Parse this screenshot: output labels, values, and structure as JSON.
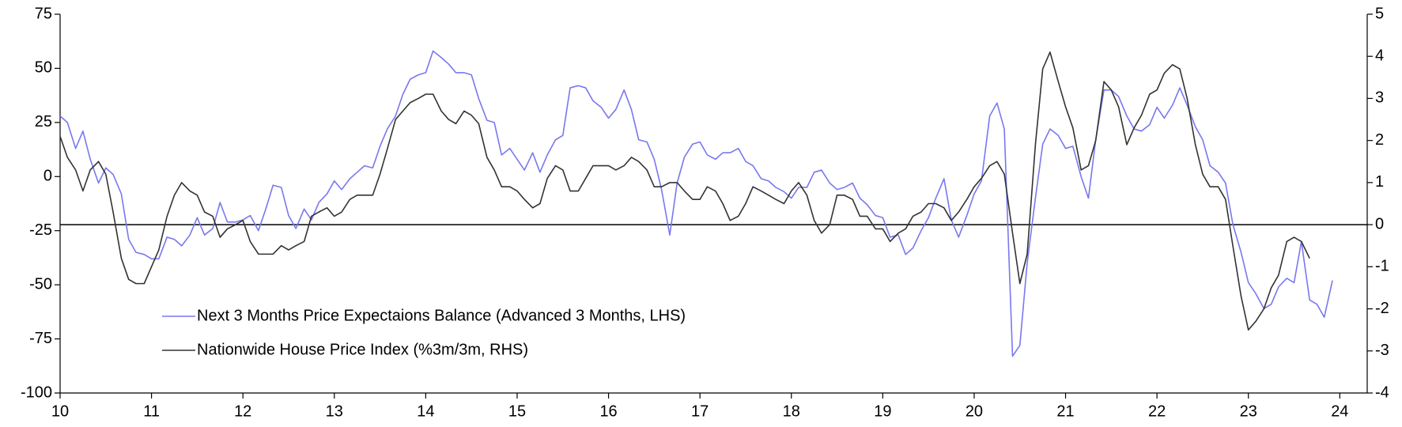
{
  "chart_data": {
    "type": "line",
    "xlim": [
      10,
      24.3
    ],
    "xticks": [
      10,
      11,
      12,
      13,
      14,
      15,
      16,
      17,
      18,
      19,
      20,
      21,
      22,
      23,
      24
    ],
    "ylim": [
      -100,
      75
    ],
    "yticks": [
      -100,
      -75,
      -50,
      -25,
      0,
      25,
      50,
      75
    ],
    "y2lim": [
      -4,
      5
    ],
    "y2ticks": [
      -4,
      -3,
      -2,
      -1,
      0,
      1,
      2,
      3,
      4,
      5
    ],
    "series": [
      {
        "name": "Next 3 Months Price Expectaions Balance (Advanced 3 Months, LHS)",
        "color": "#7878f0",
        "axis": "y",
        "x": [
          10,
          10.08,
          10.17,
          10.25,
          10.33,
          10.42,
          10.5,
          10.58,
          10.67,
          10.75,
          10.83,
          10.92,
          11,
          11.08,
          11.17,
          11.25,
          11.33,
          11.42,
          11.5,
          11.58,
          11.67,
          11.75,
          11.83,
          11.92,
          12,
          12.08,
          12.17,
          12.25,
          12.33,
          12.42,
          12.5,
          12.58,
          12.67,
          12.75,
          12.83,
          12.92,
          13,
          13.08,
          13.17,
          13.25,
          13.33,
          13.42,
          13.5,
          13.58,
          13.67,
          13.75,
          13.83,
          13.92,
          14,
          14.08,
          14.17,
          14.25,
          14.33,
          14.42,
          14.5,
          14.58,
          14.67,
          14.75,
          14.83,
          14.92,
          15,
          15.08,
          15.17,
          15.25,
          15.33,
          15.42,
          15.5,
          15.58,
          15.67,
          15.75,
          15.83,
          15.92,
          16,
          16.08,
          16.17,
          16.25,
          16.33,
          16.42,
          16.5,
          16.58,
          16.67,
          16.75,
          16.83,
          16.92,
          17,
          17.08,
          17.17,
          17.25,
          17.33,
          17.42,
          17.5,
          17.58,
          17.67,
          17.75,
          17.83,
          17.92,
          18,
          18.08,
          18.17,
          18.25,
          18.33,
          18.42,
          18.5,
          18.58,
          18.67,
          18.75,
          18.83,
          18.92,
          19,
          19.08,
          19.17,
          19.25,
          19.33,
          19.42,
          19.5,
          19.58,
          19.67,
          19.75,
          19.83,
          19.92,
          20,
          20.08,
          20.17,
          20.25,
          20.33,
          20.42,
          20.5,
          20.58,
          20.67,
          20.75,
          20.83,
          20.92,
          21,
          21.08,
          21.17,
          21.25,
          21.33,
          21.42,
          21.5,
          21.58,
          21.67,
          21.75,
          21.83,
          21.92,
          22,
          22.08,
          22.17,
          22.25,
          22.33,
          22.42,
          22.5,
          22.58,
          22.67,
          22.75,
          22.83,
          22.92,
          23,
          23.08,
          23.17,
          23.25,
          23.33,
          23.42,
          23.5,
          23.58,
          23.67,
          23.75,
          23.83,
          23.92
        ],
        "values": [
          28,
          25,
          13,
          21,
          8,
          -3,
          4,
          1,
          -8,
          -29,
          -35,
          -36,
          -38,
          -38,
          -28,
          -29,
          -32,
          -27,
          -19,
          -27,
          -24,
          -12,
          -21,
          -21,
          -20,
          -18,
          -25,
          -15,
          -4,
          -5,
          -18,
          -24,
          -15,
          -20,
          -12,
          -8,
          -2,
          -6,
          -1,
          2,
          5,
          4,
          14,
          22,
          28,
          38,
          45,
          47,
          48,
          58,
          55,
          52,
          48,
          48,
          47,
          36,
          26,
          25,
          10,
          13,
          8,
          3,
          11,
          2,
          10,
          17,
          19,
          41,
          42,
          41,
          35,
          32,
          27,
          31,
          40,
          31,
          17,
          16,
          8,
          -6,
          -27,
          -3,
          9,
          15,
          16,
          10,
          8,
          11,
          11,
          13,
          7,
          5,
          -1,
          -2,
          -5,
          -7,
          -10,
          -5,
          -5,
          2,
          3,
          -3,
          -6,
          -5,
          -3,
          -10,
          -13,
          -18,
          -19,
          -28,
          -27,
          -36,
          -33,
          -25,
          -19,
          -10,
          -1,
          -20,
          -28,
          -18,
          -8,
          -2,
          28,
          34,
          22,
          -83,
          -78,
          -40,
          -10,
          15,
          22,
          19,
          13,
          14,
          0,
          -10,
          17,
          40,
          40,
          37,
          28,
          22,
          21,
          24,
          32,
          27,
          33,
          41,
          33,
          23,
          17,
          5,
          2,
          -3,
          -22,
          -35,
          -49,
          -54,
          -61,
          -59,
          -51,
          -47,
          -49,
          -30,
          -57,
          -59,
          -65,
          -48
        ]
      },
      {
        "name": "Nationwide House Price Index (%3m/3m, RHS)",
        "color": "#333333",
        "axis": "y2",
        "x": [
          10,
          10.08,
          10.17,
          10.25,
          10.33,
          10.42,
          10.5,
          10.58,
          10.67,
          10.75,
          10.83,
          10.92,
          11,
          11.08,
          11.17,
          11.25,
          11.33,
          11.42,
          11.5,
          11.58,
          11.67,
          11.75,
          11.83,
          11.92,
          12,
          12.08,
          12.17,
          12.25,
          12.33,
          12.42,
          12.5,
          12.58,
          12.67,
          12.75,
          12.83,
          12.92,
          13,
          13.08,
          13.17,
          13.25,
          13.33,
          13.42,
          13.5,
          13.58,
          13.67,
          13.75,
          13.83,
          13.92,
          14,
          14.08,
          14.17,
          14.25,
          14.33,
          14.42,
          14.5,
          14.58,
          14.67,
          14.75,
          14.83,
          14.92,
          15,
          15.08,
          15.17,
          15.25,
          15.33,
          15.42,
          15.5,
          15.58,
          15.67,
          15.75,
          15.83,
          15.92,
          16,
          16.08,
          16.17,
          16.25,
          16.33,
          16.42,
          16.5,
          16.58,
          16.67,
          16.75,
          16.83,
          16.92,
          17,
          17.08,
          17.17,
          17.25,
          17.33,
          17.42,
          17.5,
          17.58,
          17.67,
          17.75,
          17.83,
          17.92,
          18,
          18.08,
          18.17,
          18.25,
          18.33,
          18.42,
          18.5,
          18.58,
          18.67,
          18.75,
          18.83,
          18.92,
          19,
          19.08,
          19.17,
          19.25,
          19.33,
          19.42,
          19.5,
          19.58,
          19.67,
          19.75,
          19.83,
          19.92,
          20,
          20.08,
          20.17,
          20.25,
          20.33,
          20.42,
          20.5,
          20.58,
          20.67,
          20.75,
          20.83,
          20.92,
          21,
          21.08,
          21.17,
          21.25,
          21.33,
          21.42,
          21.5,
          21.58,
          21.67,
          21.75,
          21.83,
          21.92,
          22,
          22.08,
          22.17,
          22.25,
          22.33,
          22.42,
          22.5,
          22.58,
          22.67,
          22.75,
          22.83,
          22.92,
          23,
          23.08,
          23.17,
          23.25,
          23.33,
          23.42,
          23.5,
          23.58,
          23.67
        ],
        "values": [
          2.1,
          1.6,
          1.3,
          0.8,
          1.3,
          1.5,
          1.2,
          0.3,
          -0.8,
          -1.3,
          -1.4,
          -1.4,
          -1.0,
          -0.6,
          0.2,
          0.7,
          1.0,
          0.8,
          0.7,
          0.3,
          0.2,
          -0.3,
          -0.1,
          0,
          0.1,
          -0.4,
          -0.7,
          -0.7,
          -0.7,
          -0.5,
          -0.6,
          -0.5,
          -0.4,
          0.2,
          0.3,
          0.4,
          0.2,
          0.3,
          0.6,
          0.7,
          0.7,
          0.7,
          1.2,
          1.8,
          2.5,
          2.7,
          2.9,
          3.0,
          3.1,
          3.1,
          2.7,
          2.5,
          2.4,
          2.7,
          2.6,
          2.4,
          1.6,
          1.3,
          0.9,
          0.9,
          0.8,
          0.6,
          0.4,
          0.5,
          1.1,
          1.4,
          1.3,
          0.8,
          0.8,
          1.1,
          1.4,
          1.4,
          1.4,
          1.3,
          1.4,
          1.6,
          1.5,
          1.3,
          0.9,
          0.9,
          1.0,
          1.0,
          0.8,
          0.6,
          0.6,
          0.9,
          0.8,
          0.5,
          0.1,
          0.2,
          0.5,
          0.9,
          0.8,
          0.7,
          0.6,
          0.5,
          0.8,
          1.0,
          0.7,
          0.1,
          -0.2,
          0,
          0.7,
          0.7,
          0.6,
          0.2,
          0.2,
          -0.1,
          -0.1,
          -0.4,
          -0.2,
          -0.1,
          0.2,
          0.3,
          0.5,
          0.5,
          0.4,
          0.1,
          0.3,
          0.6,
          0.9,
          1.1,
          1.4,
          1.5,
          1.2,
          -0.2,
          -1.4,
          -0.7,
          1.9,
          3.7,
          4.1,
          3.4,
          2.8,
          2.3,
          1.3,
          1.4,
          2.0,
          3.4,
          3.2,
          2.8,
          1.9,
          2.3,
          2.6,
          3.1,
          3.2,
          3.6,
          3.8,
          3.7,
          3.0,
          1.9,
          1.2,
          0.9,
          0.9,
          0.6,
          -0.5,
          -1.7,
          -2.5,
          -2.3,
          -2.0,
          -1.5,
          -1.2,
          -0.4,
          -0.3,
          -0.4,
          -0.8
        ]
      }
    ]
  }
}
